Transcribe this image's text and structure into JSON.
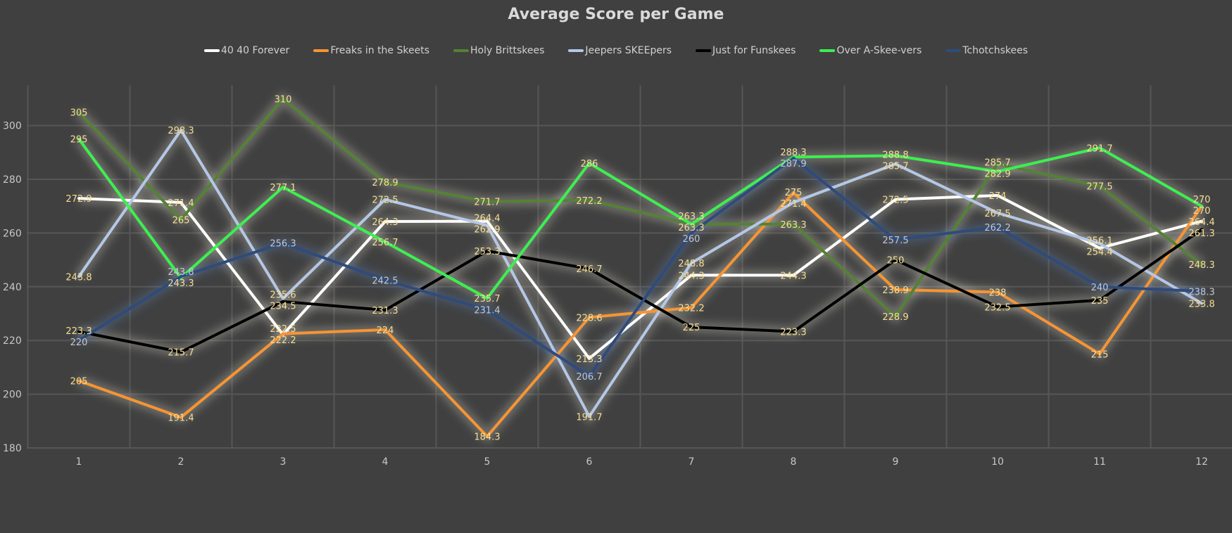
{
  "chart_data": {
    "type": "line",
    "title": "Average Score per Game",
    "xlabel": "",
    "ylabel": "",
    "categories": [
      "1",
      "2",
      "3",
      "4",
      "5",
      "6",
      "7",
      "8",
      "9",
      "10",
      "11",
      "12"
    ],
    "ylim": [
      180,
      315
    ],
    "yticks": [
      180,
      200,
      220,
      240,
      260,
      280,
      300
    ],
    "grid": true,
    "legend": "top",
    "data_labels": true,
    "label_color": "#f7df94",
    "series": [
      {
        "name": "40 40 Forever",
        "color": "#ffffff",
        "values": [
          272.9,
          271.4,
          222.2,
          264.3,
          264.4,
          213.3,
          244.3,
          244.3,
          272.5,
          274,
          254.4,
          264.4
        ]
      },
      {
        "name": "Freaks in the Skeets",
        "color": "#f79433",
        "values": [
          205,
          191.4,
          222.5,
          224,
          184.3,
          228.6,
          232.2,
          275,
          238.9,
          238,
          215,
          270
        ]
      },
      {
        "name": "Holy Brittskees",
        "color": "#548235",
        "values": [
          305,
          265,
          310,
          278.9,
          271.7,
          272.2,
          263.3,
          263.3,
          228.9,
          285.7,
          277.5,
          248.3
        ]
      },
      {
        "name": "Jeepers SKEEpers",
        "color": "#b4c7e7",
        "values": [
          243.8,
          298.3,
          235.6,
          272.5,
          262.9,
          191.7,
          248.8,
          271.4,
          285.7,
          267.5,
          256.1,
          233.8
        ]
      },
      {
        "name": "Just for Funskees",
        "color": "#000000",
        "values": [
          223.3,
          215.7,
          234.5,
          231.3,
          253.3,
          246.7,
          225,
          223.3,
          250,
          232.5,
          235,
          261.3
        ]
      },
      {
        "name": "Over A-Skee-vers",
        "color": "#3bf050",
        "values": [
          295,
          243.3,
          277.1,
          256.7,
          235.7,
          286,
          263.3,
          288.3,
          288.8,
          282.9,
          291.7,
          270
        ]
      },
      {
        "name": "Tchotchskees",
        "color": "#2f4b7c",
        "label_color": "#c3c8d2",
        "values": [
          220,
          243.8,
          256.3,
          242.5,
          231.4,
          206.7,
          260,
          287.9,
          257.5,
          262.2,
          240,
          238.3
        ]
      }
    ]
  }
}
